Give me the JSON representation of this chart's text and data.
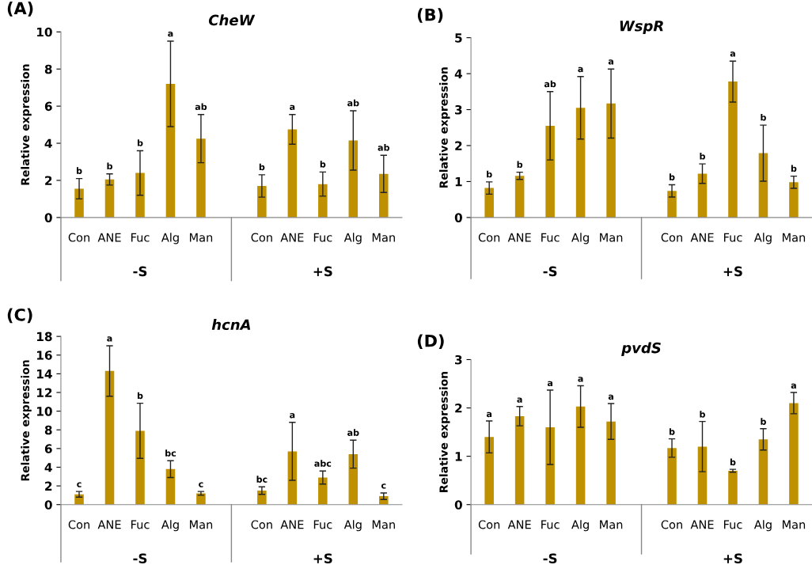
{
  "chart_data": [
    {
      "type": "bar",
      "title": "CheW",
      "ylabel": "Relative expression",
      "categories": [
        "Con",
        "ANE",
        "Fuc",
        "Alg",
        "Man",
        null,
        "Con",
        "ANE",
        "Fuc",
        "Alg",
        "Man"
      ],
      "color": "#bf9000",
      "values": [
        1.55,
        2.05,
        2.4,
        7.2,
        4.25,
        null,
        1.7,
        4.75,
        1.8,
        4.15,
        2.35
      ],
      "errors": [
        0.55,
        0.3,
        1.2,
        2.3,
        1.3,
        null,
        0.6,
        0.8,
        0.65,
        1.6,
        1.0
      ],
      "ylim": [
        0,
        10
      ],
      "yticks": [
        0,
        2,
        4,
        6,
        8,
        10
      ],
      "grid": false,
      "annotations": [
        "(A)",
        "-S",
        "+S",
        "b",
        "b",
        "b",
        "a",
        "ab",
        "b",
        "a",
        "b",
        "ab",
        "ab"
      ]
    },
    {
      "type": "bar",
      "title": "WspR",
      "ylabel": "Relative expression",
      "categories": [
        "Con",
        "ANE",
        "Fuc",
        "Alg",
        "Man",
        null,
        "Con",
        "ANE",
        "Fuc",
        "Alg",
        "Man"
      ],
      "color": "#bf9000",
      "values": [
        0.82,
        1.16,
        2.55,
        3.05,
        3.17,
        null,
        0.74,
        1.22,
        3.78,
        1.79,
        0.98
      ],
      "errors": [
        0.17,
        0.1,
        0.95,
        0.87,
        0.96,
        null,
        0.17,
        0.27,
        0.57,
        0.78,
        0.17
      ],
      "ylim": [
        0,
        5
      ],
      "yticks": [
        0,
        1,
        2,
        3,
        4,
        5
      ],
      "grid": false,
      "annotations": [
        "(B)",
        "-S",
        "+S",
        "b",
        "b",
        "ab",
        "a",
        "a",
        "b",
        "b",
        "a",
        "b",
        "b"
      ]
    },
    {
      "type": "bar",
      "title": "hcnA",
      "ylabel": "Relative expression",
      "categories": [
        "Con",
        "ANE",
        "Fuc",
        "Alg",
        "Man",
        null,
        "Con",
        "ANE",
        "Fuc",
        "Alg",
        "Man"
      ],
      "color": "#bf9000",
      "values": [
        1.1,
        14.3,
        7.9,
        3.8,
        1.2,
        null,
        1.5,
        5.7,
        2.9,
        5.4,
        0.9
      ],
      "errors": [
        0.3,
        2.7,
        2.95,
        0.9,
        0.2,
        null,
        0.4,
        3.1,
        0.7,
        1.5,
        0.35
      ],
      "ylim": [
        0,
        18
      ],
      "yticks": [
        0,
        2,
        4,
        6,
        8,
        10,
        12,
        14,
        16,
        18
      ],
      "grid": false,
      "annotations": [
        "(C)",
        "-S",
        "+S",
        "c",
        "a",
        "b",
        "bc",
        "c",
        "bc",
        "a",
        "abc",
        "ab",
        "c"
      ]
    },
    {
      "type": "bar",
      "title": "pvdS",
      "ylabel": "Relative expression",
      "categories": [
        "Con",
        "ANE",
        "Fuc",
        "Alg",
        "Man",
        null,
        "Con",
        "ANE",
        "Fuc",
        "Alg",
        "Man"
      ],
      "color": "#bf9000",
      "values": [
        1.4,
        1.83,
        1.6,
        2.03,
        1.72,
        null,
        1.17,
        1.2,
        0.7,
        1.35,
        2.1
      ],
      "errors": [
        0.33,
        0.2,
        0.77,
        0.43,
        0.37,
        null,
        0.19,
        0.52,
        0.03,
        0.22,
        0.22
      ],
      "ylim": [
        0,
        3
      ],
      "yticks": [
        0,
        1,
        2,
        3
      ],
      "grid": false,
      "annotations": [
        "(D)",
        "-S",
        "+S",
        "a",
        "a",
        "a",
        "a",
        "a",
        "b",
        "b",
        "b",
        "b",
        "a"
      ]
    }
  ]
}
